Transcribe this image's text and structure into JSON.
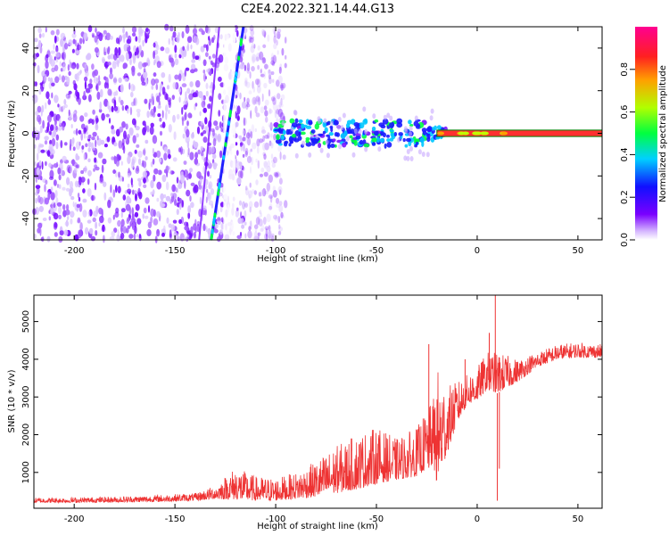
{
  "title": "C2E4.2022.321.14.44.G13",
  "chart_data": [
    {
      "type": "heatmap",
      "xlabel": "Height of straight line (km)",
      "ylabel": "Frequency (Hz)",
      "xlim": [
        -220,
        62
      ],
      "ylim": [
        -50,
        50
      ],
      "x_ticks": [
        -200,
        -150,
        -100,
        -50,
        0,
        50
      ],
      "y_ticks": [
        -40,
        -20,
        0,
        20,
        40
      ],
      "colorbar": {
        "label": "Normalized spectral amplitude",
        "range": [
          0,
          1
        ],
        "ticks": [
          "0.0",
          "0.2",
          "0.4",
          "0.6",
          "0.8"
        ],
        "colors": [
          "#ffffff",
          "#7a00ff",
          "#0000ff",
          "#00c8ff",
          "#00ff40",
          "#c0ff00",
          "#ffa000",
          "#ff2020",
          "#ff0090"
        ]
      },
      "features": {
        "noise_region_x": [
          -220,
          -95
        ],
        "steep_line": {
          "x": [
            -132,
            -116
          ],
          "y": [
            -50,
            50
          ]
        },
        "centre_line": {
          "x": [
            -100,
            62
          ],
          "y": 0
        },
        "clean_segment_x": [
          -20,
          62
        ]
      }
    },
    {
      "type": "line",
      "xlabel": "Height of straight line (km)",
      "ylabel": "SNR (10 * v/v)",
      "xlim": [
        -220,
        62
      ],
      "ylim": [
        50,
        5700
      ],
      "x_ticks": [
        -200,
        -150,
        -100,
        -50,
        0,
        50
      ],
      "y_ticks": [
        1000,
        2000,
        3000,
        4000,
        5000
      ],
      "color": "#ee3333",
      "envelope": [
        [
          -220,
          200,
          330
        ],
        [
          -200,
          200,
          340
        ],
        [
          -180,
          210,
          360
        ],
        [
          -160,
          220,
          400
        ],
        [
          -140,
          250,
          450
        ],
        [
          -130,
          300,
          650
        ],
        [
          -120,
          280,
          1150
        ],
        [
          -110,
          250,
          900
        ],
        [
          -100,
          250,
          850
        ],
        [
          -90,
          300,
          1000
        ],
        [
          -80,
          350,
          1300
        ],
        [
          -70,
          450,
          1700
        ],
        [
          -60,
          550,
          2000
        ],
        [
          -50,
          700,
          2200
        ],
        [
          -40,
          800,
          1900
        ],
        [
          -30,
          900,
          2200
        ],
        [
          -22,
          1200,
          2900
        ],
        [
          -20,
          700,
          3800
        ],
        [
          -15,
          1500,
          3300
        ],
        [
          -10,
          2300,
          3400
        ],
        [
          -5,
          2800,
          3600
        ],
        [
          0,
          2900,
          3800
        ],
        [
          5,
          3200,
          4200
        ],
        [
          10,
          3100,
          4200
        ],
        [
          20,
          3400,
          4000
        ],
        [
          30,
          3800,
          4200
        ],
        [
          40,
          4000,
          4400
        ],
        [
          50,
          4050,
          4450
        ],
        [
          62,
          4050,
          4400
        ]
      ],
      "spikes": [
        {
          "x": -24,
          "y": 4400
        },
        {
          "x": -6,
          "y": 4000
        },
        {
          "x": 6,
          "y": 4700
        },
        {
          "x": 9,
          "y": 5700
        },
        {
          "x": 10,
          "y": 250
        },
        {
          "x": 11,
          "y": 1100
        }
      ]
    }
  ]
}
